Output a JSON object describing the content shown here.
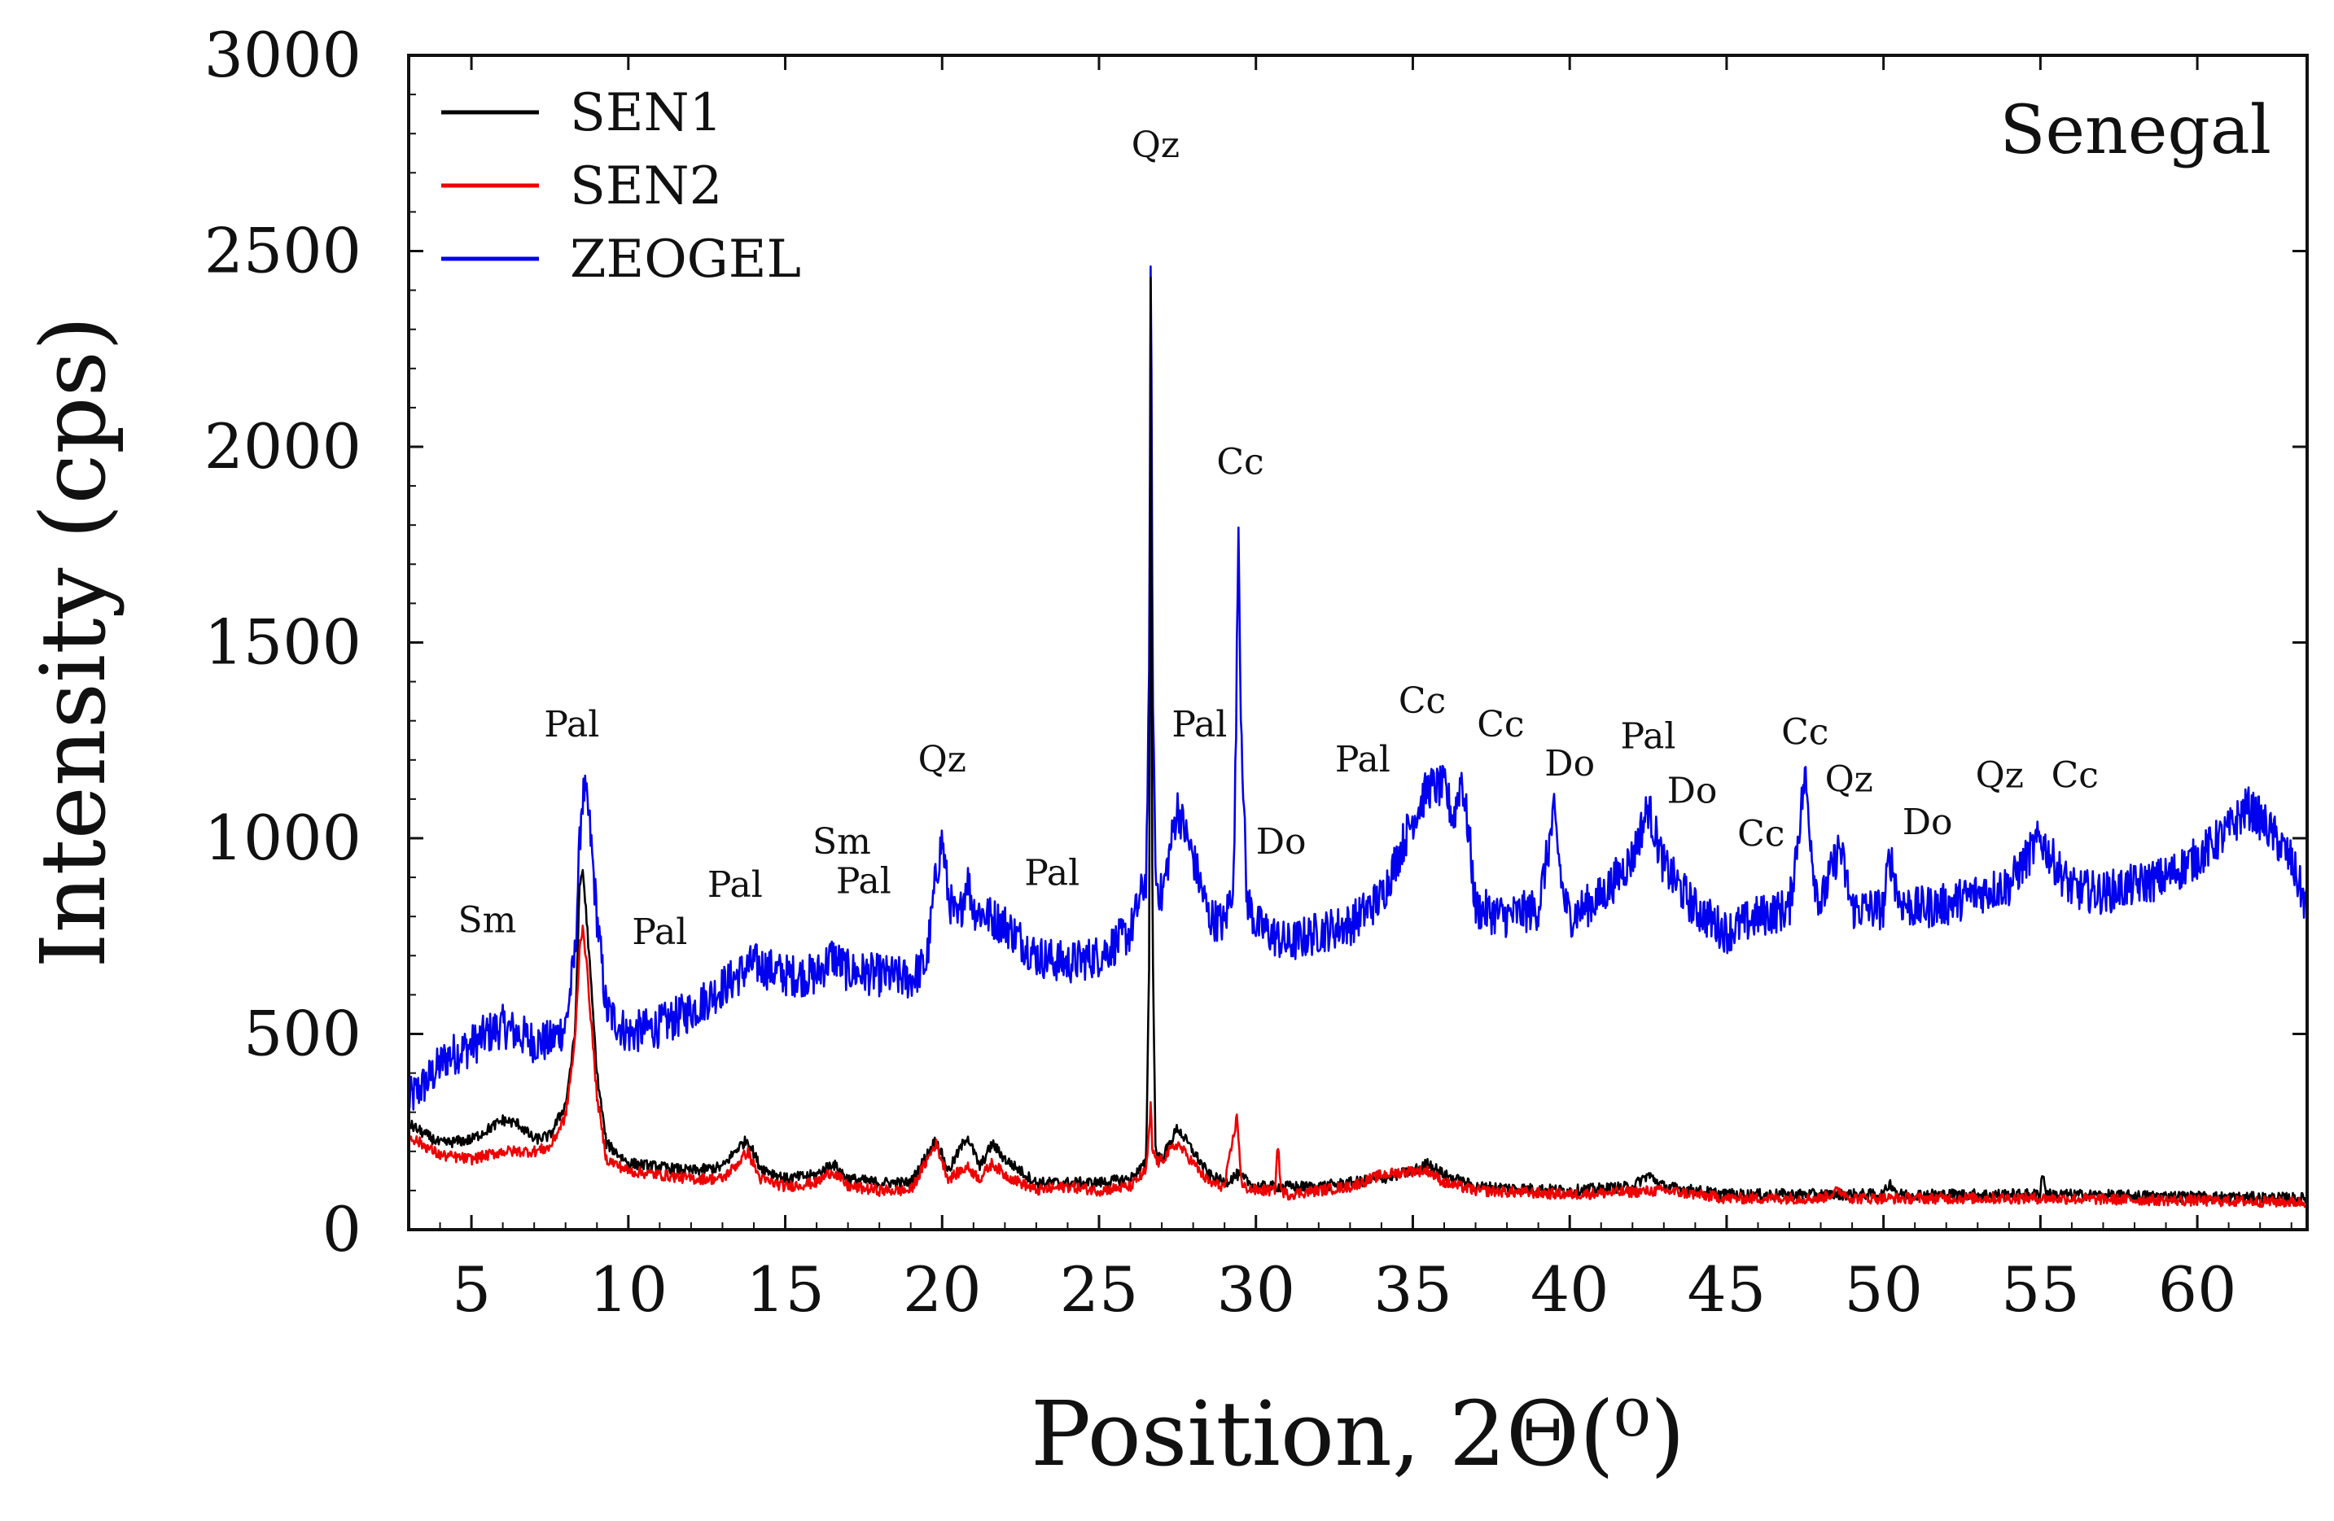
{
  "chart_data": {
    "type": "line",
    "title": "Senegal",
    "xlabel": "Position, 2Θ(⁰)",
    "ylabel": "Intensity (cps)",
    "xlim": [
      3,
      63.5
    ],
    "ylim": [
      0,
      3000
    ],
    "xticks": [
      5,
      10,
      15,
      20,
      25,
      30,
      35,
      40,
      45,
      50,
      55,
      60
    ],
    "yticks": [
      0,
      500,
      1000,
      1500,
      2000,
      2500,
      3000
    ],
    "grid": false,
    "legend": "top-left",
    "series": [
      {
        "name": "ZEOGEL",
        "color": "#0000ee",
        "noise": 55,
        "points": [
          [
            3,
            330
          ],
          [
            3.6,
            380
          ],
          [
            4.2,
            440
          ],
          [
            5,
            470
          ],
          [
            5.5,
            500
          ],
          [
            6,
            520
          ],
          [
            6.5,
            500
          ],
          [
            7,
            480
          ],
          [
            7.5,
            480
          ],
          [
            8,
            520
          ],
          [
            8.3,
            700
          ],
          [
            8.5,
            1080
          ],
          [
            8.6,
            1120
          ],
          [
            8.75,
            1050
          ],
          [
            9,
            800
          ],
          [
            9.3,
            560
          ],
          [
            10,
            500
          ],
          [
            11,
            520
          ],
          [
            12,
            560
          ],
          [
            13,
            620
          ],
          [
            14,
            680
          ],
          [
            15,
            650
          ],
          [
            16,
            650
          ],
          [
            16.5,
            700
          ],
          [
            17,
            660
          ],
          [
            18,
            650
          ],
          [
            19,
            640
          ],
          [
            19.5,
            680
          ],
          [
            19.8,
            900
          ],
          [
            20,
            1000
          ],
          [
            20.2,
            850
          ],
          [
            20.5,
            780
          ],
          [
            20.8,
            900
          ],
          [
            21,
            820
          ],
          [
            22,
            780
          ],
          [
            23,
            700
          ],
          [
            24,
            680
          ],
          [
            25,
            700
          ],
          [
            26,
            760
          ],
          [
            26.5,
            900
          ],
          [
            26.6,
            1400
          ],
          [
            26.65,
            2620
          ],
          [
            26.7,
            1500
          ],
          [
            26.8,
            900
          ],
          [
            27,
            850
          ],
          [
            27.5,
            1080
          ],
          [
            28,
            950
          ],
          [
            28.5,
            800
          ],
          [
            29,
            780
          ],
          [
            29.3,
            900
          ],
          [
            29.4,
            1500
          ],
          [
            29.45,
            1850
          ],
          [
            29.5,
            1400
          ],
          [
            29.7,
            850
          ],
          [
            30,
            780
          ],
          [
            31,
            730
          ],
          [
            32,
            760
          ],
          [
            33,
            780
          ],
          [
            34,
            850
          ],
          [
            34.5,
            950
          ],
          [
            35,
            1050
          ],
          [
            35.5,
            1130
          ],
          [
            36,
            1130
          ],
          [
            36.3,
            1050
          ],
          [
            36.55,
            1160
          ],
          [
            36.8,
            1000
          ],
          [
            37,
            820
          ],
          [
            38,
            800
          ],
          [
            39,
            820
          ],
          [
            39.5,
            1060
          ],
          [
            39.8,
            850
          ],
          [
            40,
            800
          ],
          [
            41,
            850
          ],
          [
            42,
            950
          ],
          [
            42.5,
            1080
          ],
          [
            43,
            930
          ],
          [
            44,
            820
          ],
          [
            45,
            760
          ],
          [
            46,
            800
          ],
          [
            47,
            820
          ],
          [
            47.5,
            1160
          ],
          [
            47.8,
            900
          ],
          [
            48,
            830
          ],
          [
            48.6,
            980
          ],
          [
            49,
            820
          ],
          [
            50,
            820
          ],
          [
            50.2,
            960
          ],
          [
            50.5,
            840
          ],
          [
            51,
            820
          ],
          [
            52,
            830
          ],
          [
            53,
            860
          ],
          [
            54,
            880
          ],
          [
            55,
            1000
          ],
          [
            55.5,
            930
          ],
          [
            56,
            870
          ],
          [
            57,
            860
          ],
          [
            58,
            880
          ],
          [
            59,
            900
          ],
          [
            60,
            950
          ],
          [
            61,
            1020
          ],
          [
            61.6,
            1080
          ],
          [
            62,
            1050
          ],
          [
            62.5,
            1000
          ],
          [
            63,
            940
          ],
          [
            63.5,
            820
          ]
        ]
      },
      {
        "name": "SEN1",
        "color": "#000000",
        "noise": 14,
        "points": [
          [
            3,
            270
          ],
          [
            4,
            220
          ],
          [
            5,
            230
          ],
          [
            6,
            280
          ],
          [
            6.5,
            270
          ],
          [
            7,
            230
          ],
          [
            7.5,
            240
          ],
          [
            8,
            320
          ],
          [
            8.3,
            500
          ],
          [
            8.45,
            880
          ],
          [
            8.55,
            920
          ],
          [
            8.7,
            760
          ],
          [
            9,
            400
          ],
          [
            9.3,
            220
          ],
          [
            10,
            170
          ],
          [
            11,
            160
          ],
          [
            12,
            150
          ],
          [
            13,
            160
          ],
          [
            13.5,
            210
          ],
          [
            13.8,
            230
          ],
          [
            14.2,
            160
          ],
          [
            15,
            130
          ],
          [
            16,
            140
          ],
          [
            16.5,
            170
          ],
          [
            17,
            130
          ],
          [
            18,
            120
          ],
          [
            19,
            120
          ],
          [
            19.8,
            230
          ],
          [
            20.2,
            150
          ],
          [
            20.8,
            240
          ],
          [
            21.2,
            160
          ],
          [
            21.6,
            220
          ],
          [
            22,
            180
          ],
          [
            23,
            120
          ],
          [
            24,
            120
          ],
          [
            25,
            120
          ],
          [
            26,
            130
          ],
          [
            26.5,
            170
          ],
          [
            26.6,
            700
          ],
          [
            26.65,
            2600
          ],
          [
            26.7,
            800
          ],
          [
            26.8,
            200
          ],
          [
            27,
            180
          ],
          [
            27.5,
            260
          ],
          [
            28,
            200
          ],
          [
            28.5,
            140
          ],
          [
            29,
            120
          ],
          [
            29.4,
            140
          ],
          [
            30,
            110
          ],
          [
            31,
            110
          ],
          [
            32,
            110
          ],
          [
            33,
            120
          ],
          [
            34,
            130
          ],
          [
            35,
            150
          ],
          [
            35.5,
            170
          ],
          [
            36,
            140
          ],
          [
            37,
            110
          ],
          [
            40,
            100
          ],
          [
            42,
            110
          ],
          [
            42.5,
            140
          ],
          [
            43,
            110
          ],
          [
            45,
            90
          ],
          [
            48,
            90
          ],
          [
            50,
            90
          ],
          [
            50.2,
            120
          ],
          [
            50.5,
            90
          ],
          [
            55,
            90
          ],
          [
            55.05,
            150
          ],
          [
            55.2,
            90
          ],
          [
            63.5,
            80
          ]
        ]
      },
      {
        "name": "SEN2",
        "color": "#ee0000",
        "noise": 14,
        "points": [
          [
            3,
            240
          ],
          [
            4,
            190
          ],
          [
            5,
            180
          ],
          [
            6,
            200
          ],
          [
            7,
            200
          ],
          [
            7.5,
            210
          ],
          [
            8,
            290
          ],
          [
            8.3,
            480
          ],
          [
            8.45,
            720
          ],
          [
            8.55,
            780
          ],
          [
            8.7,
            650
          ],
          [
            9,
            340
          ],
          [
            9.3,
            180
          ],
          [
            10,
            150
          ],
          [
            11,
            140
          ],
          [
            12,
            130
          ],
          [
            13,
            130
          ],
          [
            13.5,
            170
          ],
          [
            13.8,
            200
          ],
          [
            14.2,
            130
          ],
          [
            15,
            110
          ],
          [
            16,
            120
          ],
          [
            16.5,
            150
          ],
          [
            17,
            110
          ],
          [
            18,
            100
          ],
          [
            19,
            100
          ],
          [
            19.8,
            220
          ],
          [
            20.2,
            130
          ],
          [
            20.8,
            160
          ],
          [
            21.2,
            130
          ],
          [
            21.6,
            170
          ],
          [
            22,
            140
          ],
          [
            23,
            100
          ],
          [
            24,
            110
          ],
          [
            25,
            100
          ],
          [
            26,
            110
          ],
          [
            26.5,
            150
          ],
          [
            26.6,
            250
          ],
          [
            26.65,
            320
          ],
          [
            26.7,
            200
          ],
          [
            26.9,
            170
          ],
          [
            27.5,
            220
          ],
          [
            28,
            170
          ],
          [
            28.5,
            120
          ],
          [
            29,
            110
          ],
          [
            29.4,
            290
          ],
          [
            29.55,
            110
          ],
          [
            30,
            100
          ],
          [
            30.6,
            100
          ],
          [
            30.7,
            220
          ],
          [
            30.8,
            100
          ],
          [
            31,
            90
          ],
          [
            33,
            110
          ],
          [
            34,
            140
          ],
          [
            35,
            150
          ],
          [
            35.5,
            150
          ],
          [
            36,
            120
          ],
          [
            37,
            100
          ],
          [
            40,
            90
          ],
          [
            43,
            100
          ],
          [
            45,
            80
          ],
          [
            48,
            80
          ],
          [
            48.6,
            100
          ],
          [
            49,
            80
          ],
          [
            50,
            80
          ],
          [
            55,
            80
          ],
          [
            63.5,
            70
          ]
        ]
      }
    ],
    "annotations": [
      {
        "label": "Sm",
        "x": 5.5,
        "y": 760
      },
      {
        "label": "Pal",
        "x": 8.2,
        "y": 1260
      },
      {
        "label": "Pal",
        "x": 11.0,
        "y": 730
      },
      {
        "label": "Pal",
        "x": 13.4,
        "y": 850
      },
      {
        "label": "Sm",
        "x": 16.8,
        "y": 960
      },
      {
        "label": "Pal",
        "x": 17.5,
        "y": 860
      },
      {
        "label": "Qz",
        "x": 20.0,
        "y": 1170
      },
      {
        "label": "Pal",
        "x": 23.5,
        "y": 880
      },
      {
        "label": "Qz",
        "x": 26.8,
        "y": 2740
      },
      {
        "label": "Pal",
        "x": 28.2,
        "y": 1260
      },
      {
        "label": "Cc",
        "x": 29.5,
        "y": 1930
      },
      {
        "label": "Do",
        "x": 30.8,
        "y": 960
      },
      {
        "label": "Pal",
        "x": 33.4,
        "y": 1170
      },
      {
        "label": "Cc",
        "x": 35.3,
        "y": 1320
      },
      {
        "label": "Cc",
        "x": 37.8,
        "y": 1260
      },
      {
        "label": "Do",
        "x": 40.0,
        "y": 1160
      },
      {
        "label": "Pal",
        "x": 42.5,
        "y": 1230
      },
      {
        "label": "Do",
        "x": 43.9,
        "y": 1090
      },
      {
        "label": "Cc",
        "x": 46.1,
        "y": 980
      },
      {
        "label": "Cc",
        "x": 47.5,
        "y": 1240
      },
      {
        "label": "Qz",
        "x": 48.9,
        "y": 1120
      },
      {
        "label": "Do",
        "x": 51.4,
        "y": 1010
      },
      {
        "label": "Qz",
        "x": 53.7,
        "y": 1130
      },
      {
        "label": "Cc",
        "x": 56.1,
        "y": 1130
      }
    ]
  }
}
